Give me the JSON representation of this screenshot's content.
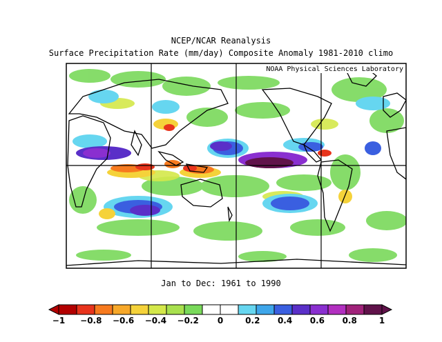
{
  "figure": {
    "title": "NCEP/NCAR Reanalysis",
    "subtitle": "Surface Precipitation Rate (mm/day) Composite Anomaly 1981-2010 climo",
    "credit": "NOAA Physical Sciences Laboratory",
    "date_range": "Jan to Dec: 1961 to 1990"
  },
  "colorbar": {
    "colors": [
      "#b30000",
      "#e8341c",
      "#f77a1e",
      "#f7a829",
      "#f5d23a",
      "#d4e84a",
      "#a8e04e",
      "#79d95a",
      "#ffffff",
      "#ffffff",
      "#66d6f0",
      "#3ea6ea",
      "#3a5fe0",
      "#5a2fc8",
      "#8a2fd0",
      "#b22fc0",
      "#a0227a",
      "#60124a"
    ],
    "tick_labels": [
      "-1",
      "-0.8",
      "-0.6",
      "-0.4",
      "-0.2",
      "0",
      "0.2",
      "0.4",
      "0.6",
      "0.8",
      "1"
    ]
  },
  "map": {
    "anomaly_range": [
      -1,
      1
    ],
    "projection": "equirectangular, Pacific-centered",
    "gridlines": true
  }
}
